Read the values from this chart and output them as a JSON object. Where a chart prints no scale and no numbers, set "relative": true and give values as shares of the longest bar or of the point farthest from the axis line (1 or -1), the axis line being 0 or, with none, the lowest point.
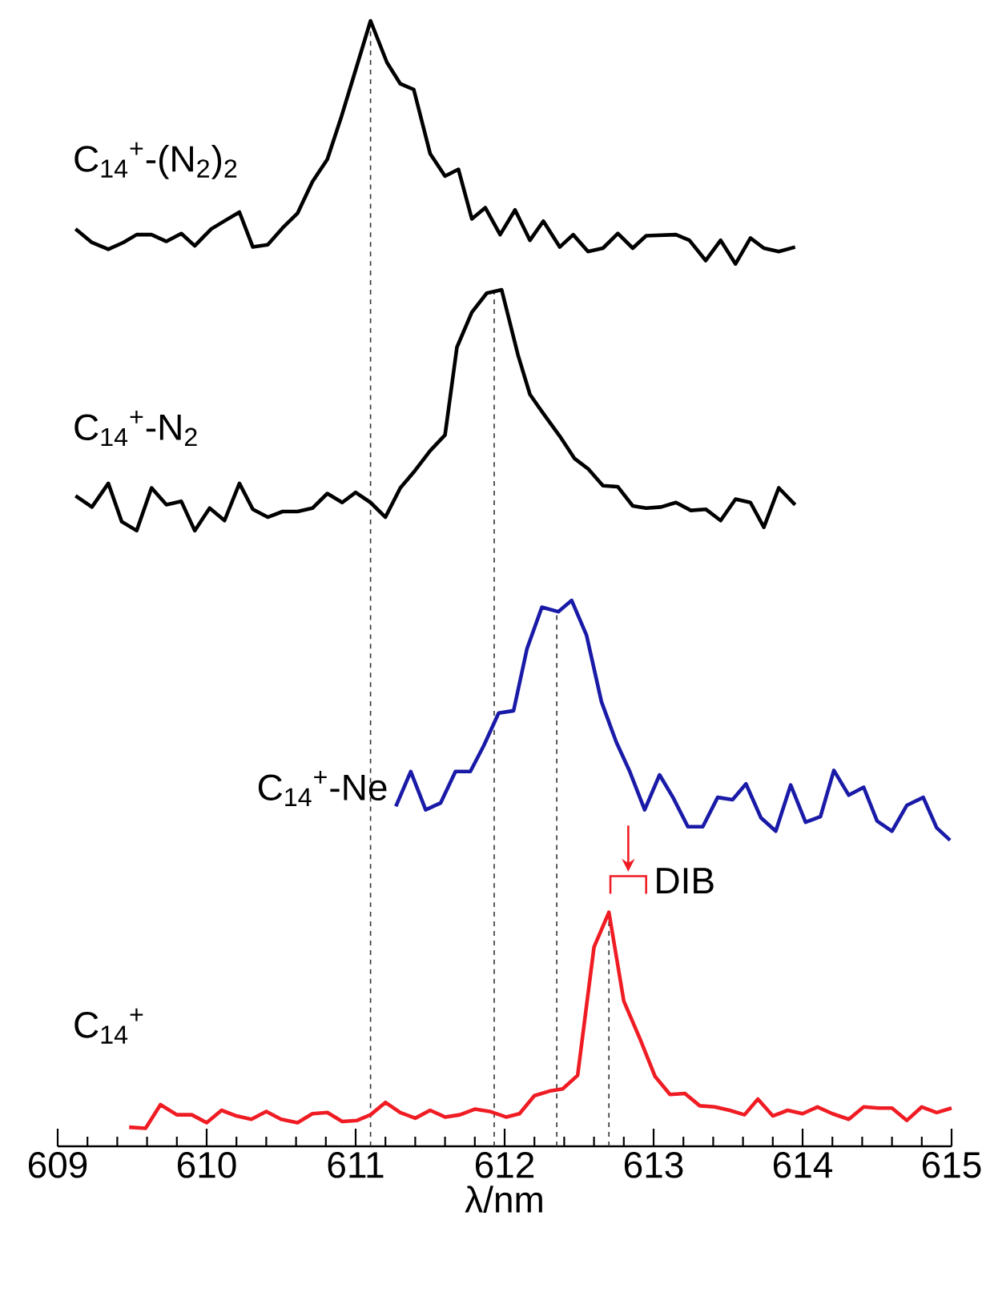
{
  "chart_data": {
    "type": "line",
    "relative": true,
    "xlabel": "λ/nm",
    "xlim": [
      609,
      615
    ],
    "tick_labels": "x",
    "line_style": "solid",
    "xticks": [
      609,
      {
        "value": 609.2,
        "label": null
      },
      {
        "value": 609.4,
        "label": null
      },
      {
        "value": 609.6,
        "label": null
      },
      {
        "value": 609.8,
        "label": null
      },
      610,
      {
        "value": 610.2,
        "label": null
      },
      {
        "value": 610.4,
        "label": null
      },
      {
        "value": 610.6,
        "label": null
      },
      {
        "value": 610.8,
        "label": null
      },
      611,
      {
        "value": 611.2,
        "label": null
      },
      {
        "value": 611.4,
        "label": null
      },
      {
        "value": 611.6,
        "label": null
      },
      {
        "value": 611.8,
        "label": null
      },
      612,
      {
        "value": 612.2,
        "label": null
      },
      {
        "value": 612.4,
        "label": null
      },
      {
        "value": 612.6,
        "label": null
      },
      {
        "value": 612.8,
        "label": null
      },
      613,
      {
        "value": 613.2,
        "label": null
      },
      {
        "value": 613.4,
        "label": null
      },
      {
        "value": 613.6,
        "label": null
      },
      {
        "value": 613.8,
        "label": null
      },
      614,
      {
        "value": 614.2,
        "label": null
      },
      {
        "value": 614.4,
        "label": null
      },
      {
        "value": 614.6,
        "label": null
      },
      {
        "value": 614.8,
        "label": null
      },
      615
    ],
    "series": [
      {
        "name": "C$_{14}$$^{+}$-(N$_{2}$)$_{2}$",
        "color": "#000000",
        "x": [
          609.12,
          609.23,
          609.34,
          609.44,
          609.53,
          609.63,
          609.73,
          609.83,
          609.92,
          610.03,
          610.13,
          610.22,
          610.31,
          610.41,
          610.51,
          610.61,
          610.71,
          610.81,
          610.9,
          610.99,
          611.1,
          611.21,
          611.3,
          611.39,
          611.5,
          611.6,
          611.69,
          611.78,
          611.87,
          611.97,
          612.07,
          612.17,
          612.26,
          612.37,
          612.46,
          612.56,
          612.66,
          612.76,
          612.86,
          612.95,
          613.15,
          613.24,
          613.35,
          613.45,
          613.55,
          613.65,
          613.74,
          613.84,
          613.95
        ],
        "values": [
          0.815,
          0.803,
          0.797,
          0.803,
          0.81,
          0.81,
          0.804,
          0.811,
          0.8,
          0.815,
          0.823,
          0.83,
          0.799,
          0.801,
          0.816,
          0.829,
          0.857,
          0.877,
          0.913,
          0.952,
          1.0,
          0.963,
          0.944,
          0.939,
          0.882,
          0.862,
          0.868,
          0.824,
          0.834,
          0.81,
          0.832,
          0.805,
          0.822,
          0.799,
          0.81,
          0.795,
          0.798,
          0.811,
          0.798,
          0.809,
          0.81,
          0.805,
          0.787,
          0.805,
          0.784,
          0.807,
          0.798,
          0.795,
          0.799
        ]
      },
      {
        "name": "C$_{14}$$^{+}$-N$_{2}$",
        "color": "#000000",
        "x": [
          609.12,
          609.23,
          609.34,
          609.43,
          609.53,
          609.63,
          609.73,
          609.83,
          609.92,
          610.02,
          610.12,
          610.22,
          610.31,
          610.41,
          610.51,
          610.61,
          610.71,
          610.81,
          610.91,
          611.0,
          611.1,
          611.2,
          611.3,
          611.39,
          611.5,
          611.6,
          611.68,
          611.78,
          611.88,
          611.98,
          612.09,
          612.17,
          612.26,
          612.37,
          612.47,
          612.56,
          612.66,
          612.76,
          612.86,
          612.95,
          613.05,
          613.15,
          613.25,
          613.35,
          613.45,
          613.55,
          613.65,
          613.74,
          613.84,
          613.95
        ],
        "values": [
          0.578,
          0.568,
          0.589,
          0.555,
          0.547,
          0.585,
          0.57,
          0.573,
          0.547,
          0.567,
          0.556,
          0.589,
          0.566,
          0.559,
          0.564,
          0.564,
          0.567,
          0.58,
          0.572,
          0.581,
          0.572,
          0.559,
          0.585,
          0.599,
          0.618,
          0.632,
          0.71,
          0.741,
          0.758,
          0.761,
          0.703,
          0.668,
          0.651,
          0.631,
          0.611,
          0.602,
          0.587,
          0.586,
          0.569,
          0.567,
          0.568,
          0.572,
          0.565,
          0.566,
          0.556,
          0.575,
          0.572,
          0.55,
          0.585,
          0.57
        ]
      },
      {
        "name": "C$_{14}$$^{+}$-Ne",
        "color": "#1a1aa8",
        "x": [
          611.27,
          611.37,
          611.47,
          611.57,
          611.67,
          611.77,
          611.86,
          611.96,
          612.06,
          612.15,
          612.25,
          612.36,
          612.45,
          612.55,
          612.65,
          612.75,
          612.84,
          612.94,
          613.04,
          613.13,
          613.23,
          613.33,
          613.43,
          613.53,
          613.62,
          613.72,
          613.82,
          613.92,
          614.02,
          614.12,
          614.21,
          614.31,
          614.41,
          614.5,
          614.6,
          614.7,
          614.81,
          614.9,
          614.99
        ],
        "values": [
          0.302,
          0.333,
          0.299,
          0.305,
          0.333,
          0.333,
          0.356,
          0.385,
          0.387,
          0.442,
          0.479,
          0.475,
          0.485,
          0.454,
          0.395,
          0.359,
          0.333,
          0.299,
          0.33,
          0.31,
          0.284,
          0.284,
          0.31,
          0.308,
          0.322,
          0.292,
          0.28,
          0.321,
          0.288,
          0.293,
          0.334,
          0.312,
          0.319,
          0.289,
          0.28,
          0.303,
          0.31,
          0.283,
          0.272
        ]
      },
      {
        "name": "C$_{14}$$^{+}$",
        "color": "#f01c24",
        "x": [
          609.48,
          609.59,
          609.69,
          609.8,
          609.9,
          610.0,
          610.1,
          610.2,
          610.3,
          610.4,
          610.5,
          610.61,
          610.71,
          610.81,
          610.91,
          611.01,
          611.1,
          611.2,
          611.3,
          611.4,
          611.5,
          611.6,
          611.7,
          611.8,
          611.9,
          612.01,
          612.1,
          612.2,
          612.3,
          612.39,
          612.49,
          612.6,
          612.7,
          612.8,
          612.91,
          613.01,
          613.11,
          613.21,
          613.31,
          613.41,
          613.51,
          613.61,
          613.7,
          613.8,
          613.9,
          614.0,
          614.1,
          614.2,
          614.31,
          614.41,
          614.51,
          614.6,
          614.7,
          614.8,
          614.9,
          615.0
        ],
        "values": [
          0.017,
          0.016,
          0.037,
          0.028,
          0.028,
          0.021,
          0.032,
          0.027,
          0.024,
          0.031,
          0.024,
          0.021,
          0.029,
          0.03,
          0.022,
          0.023,
          0.028,
          0.039,
          0.03,
          0.025,
          0.032,
          0.026,
          0.028,
          0.033,
          0.031,
          0.026,
          0.029,
          0.045,
          0.049,
          0.051,
          0.063,
          0.177,
          0.208,
          0.129,
          0.095,
          0.062,
          0.046,
          0.047,
          0.036,
          0.035,
          0.032,
          0.028,
          0.042,
          0.027,
          0.032,
          0.029,
          0.035,
          0.029,
          0.024,
          0.035,
          0.034,
          0.034,
          0.023,
          0.035,
          0.03,
          0.034
        ]
      }
    ],
    "ref_lines": [
      {
        "axis": "x",
        "value": 611.1,
        "color": "#333333",
        "line_style": "dashed"
      },
      {
        "axis": "x",
        "value": 611.93,
        "color": "#333333",
        "line_style": "dashed"
      },
      {
        "axis": "x",
        "value": 612.35,
        "color": "#333333",
        "line_style": "dashed"
      },
      {
        "axis": "x",
        "value": 612.7,
        "color": "#333333",
        "line_style": "dashed"
      }
    ],
    "annotations": [
      "DIB"
    ]
  }
}
